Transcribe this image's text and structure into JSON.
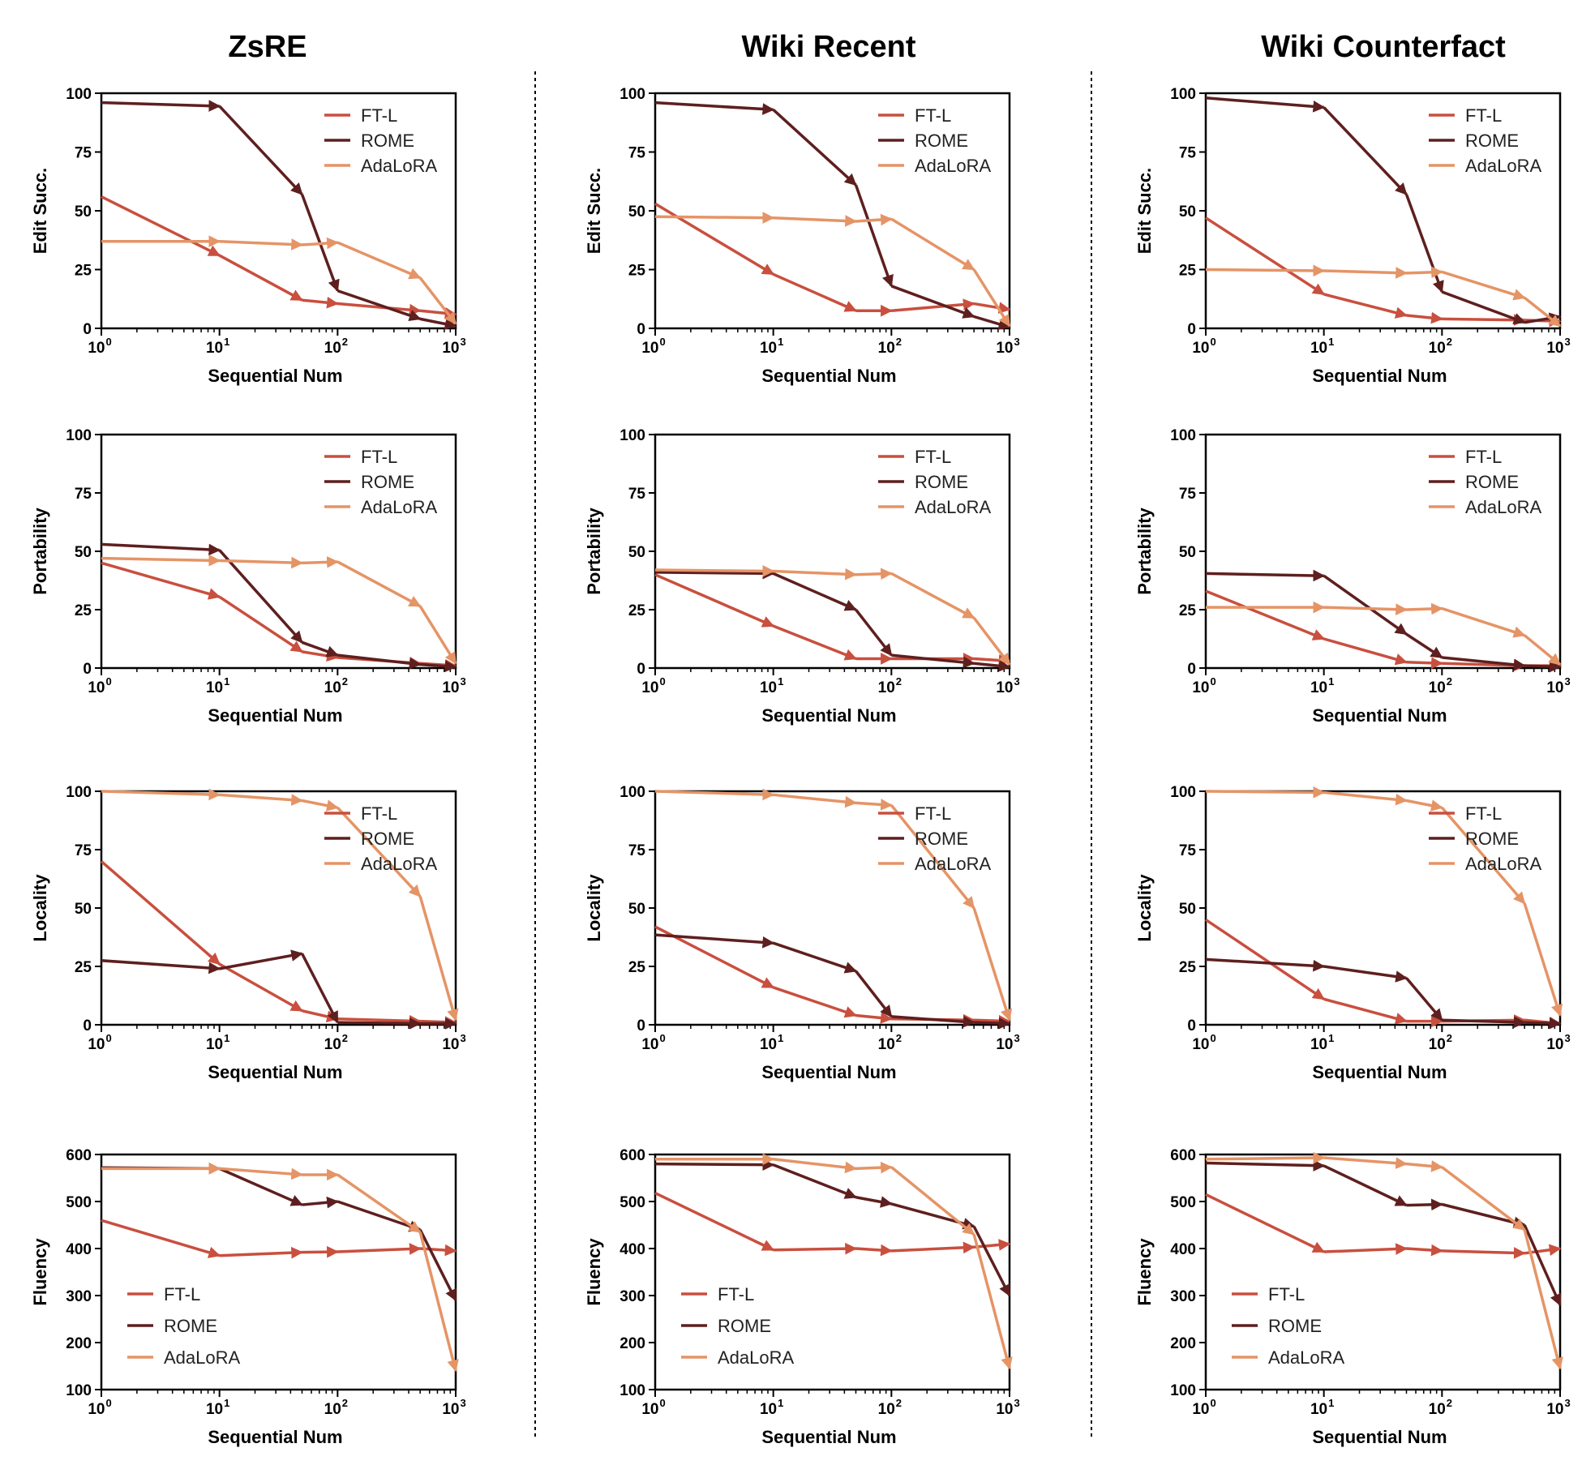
{
  "colors": {
    "FT-L": "#c94f3e",
    "ROME": "#5e1f1f",
    "AdaLoRA": "#e59466"
  },
  "columns": [
    "ZsRE",
    "Wiki Recent",
    "Wiki Counterfact"
  ],
  "chart_data": [
    {
      "type": "line",
      "dataset": "ZsRE",
      "xlabel": "Sequential Num",
      "ylabel": "Edit Succ.",
      "xscale": "log",
      "xlim": [
        1,
        1000
      ],
      "ylim": [
        0,
        100
      ],
      "yticks": [
        0,
        25,
        50,
        75,
        100
      ],
      "legend": "top-right",
      "x": [
        1,
        10,
        50,
        100,
        500,
        1000
      ],
      "series": [
        {
          "name": "FT-L",
          "values": [
            56,
            31,
            12,
            10.5,
            7.5,
            6
          ]
        },
        {
          "name": "ROME",
          "values": [
            96,
            94.5,
            57,
            16,
            4,
            1
          ]
        },
        {
          "name": "AdaLoRA",
          "values": [
            37,
            37,
            35.5,
            36.5,
            21.5,
            2
          ]
        }
      ]
    },
    {
      "type": "line",
      "dataset": "Wiki Recent",
      "xlabel": "Sequential Num",
      "ylabel": "Edit Succ.",
      "xscale": "log",
      "xlim": [
        1,
        1000
      ],
      "ylim": [
        0,
        100
      ],
      "yticks": [
        0,
        25,
        50,
        75,
        100
      ],
      "legend": "top-right",
      "x": [
        1,
        10,
        50,
        100,
        500,
        1000
      ],
      "series": [
        {
          "name": "FT-L",
          "values": [
            53,
            23,
            7.5,
            7.5,
            10.5,
            8
          ]
        },
        {
          "name": "ROME",
          "values": [
            96,
            93,
            61,
            18,
            5,
            0.5
          ]
        },
        {
          "name": "AdaLoRA",
          "values": [
            47.5,
            47,
            45.5,
            46.5,
            25,
            1
          ]
        }
      ]
    },
    {
      "type": "line",
      "dataset": "Wiki Counterfact",
      "xlabel": "Sequential Num",
      "ylabel": "Edit Succ.",
      "xscale": "log",
      "xlim": [
        1,
        1000
      ],
      "ylim": [
        0,
        100
      ],
      "yticks": [
        0,
        25,
        50,
        75,
        100
      ],
      "legend": "top-right",
      "x": [
        1,
        10,
        50,
        100,
        500,
        1000
      ],
      "series": [
        {
          "name": "FT-L",
          "values": [
            47,
            14.5,
            5.5,
            4,
            3.5,
            3
          ]
        },
        {
          "name": "ROME",
          "values": [
            98,
            94,
            57,
            15.5,
            2.5,
            5
          ]
        },
        {
          "name": "AdaLoRA",
          "values": [
            25,
            24.5,
            23.5,
            24,
            13,
            1
          ]
        }
      ]
    },
    {
      "type": "line",
      "dataset": "ZsRE",
      "xlabel": "Sequential Num",
      "ylabel": "Portability",
      "xscale": "log",
      "xlim": [
        1,
        1000
      ],
      "ylim": [
        0,
        100
      ],
      "yticks": [
        0,
        25,
        50,
        75,
        100
      ],
      "legend": "top-right",
      "x": [
        1,
        10,
        50,
        100,
        500,
        1000
      ],
      "series": [
        {
          "name": "FT-L",
          "values": [
            45,
            30.5,
            7,
            4.5,
            2,
            1
          ]
        },
        {
          "name": "ROME",
          "values": [
            53,
            50.5,
            11,
            5.5,
            1.5,
            0.5
          ]
        },
        {
          "name": "AdaLoRA",
          "values": [
            47,
            46,
            45,
            45.5,
            26.5,
            2
          ]
        }
      ]
    },
    {
      "type": "line",
      "dataset": "Wiki Recent",
      "xlabel": "Sequential Num",
      "ylabel": "Portability",
      "xscale": "log",
      "xlim": [
        1,
        1000
      ],
      "ylim": [
        0,
        100
      ],
      "yticks": [
        0,
        25,
        50,
        75,
        100
      ],
      "legend": "top-right",
      "x": [
        1,
        10,
        50,
        100,
        500,
        1000
      ],
      "series": [
        {
          "name": "FT-L",
          "values": [
            40,
            18,
            4,
            4,
            4,
            3
          ]
        },
        {
          "name": "ROME",
          "values": [
            41,
            40.5,
            25,
            5.5,
            2,
            0.5
          ]
        },
        {
          "name": "AdaLoRA",
          "values": [
            42,
            41.5,
            40,
            40.5,
            21.5,
            1.5
          ]
        }
      ]
    },
    {
      "type": "line",
      "dataset": "Wiki Counterfact",
      "xlabel": "Sequential Num",
      "ylabel": "Portability",
      "xscale": "log",
      "xlim": [
        1,
        1000
      ],
      "ylim": [
        0,
        100
      ],
      "yticks": [
        0,
        25,
        50,
        75,
        100
      ],
      "legend": "top-right",
      "x": [
        1,
        10,
        50,
        100,
        500,
        1000
      ],
      "series": [
        {
          "name": "FT-L",
          "values": [
            33,
            12.5,
            2.5,
            2,
            1,
            1
          ]
        },
        {
          "name": "ROME",
          "values": [
            40.5,
            39.5,
            14.5,
            4.5,
            1,
            0.5
          ]
        },
        {
          "name": "AdaLoRA",
          "values": [
            26,
            26,
            25,
            25.5,
            14,
            1.5
          ]
        }
      ]
    },
    {
      "type": "line",
      "dataset": "ZsRE",
      "xlabel": "Sequential Num",
      "ylabel": "Locality",
      "xscale": "log",
      "xlim": [
        1,
        1000
      ],
      "ylim": [
        0,
        100
      ],
      "yticks": [
        0,
        25,
        50,
        75,
        100
      ],
      "legend": "top-right",
      "x": [
        1,
        10,
        50,
        100,
        500,
        1000
      ],
      "series": [
        {
          "name": "FT-L",
          "values": [
            70,
            26,
            6,
            2.5,
            1.5,
            1
          ]
        },
        {
          "name": "ROME",
          "values": [
            27.5,
            24,
            30.5,
            1,
            0.5,
            0.5
          ]
        },
        {
          "name": "AdaLoRA",
          "values": [
            100,
            98.5,
            96,
            93,
            55,
            2
          ]
        }
      ]
    },
    {
      "type": "line",
      "dataset": "Wiki Recent",
      "xlabel": "Sequential Num",
      "ylabel": "Locality",
      "xscale": "log",
      "xlim": [
        1,
        1000
      ],
      "ylim": [
        0,
        100
      ],
      "yticks": [
        0,
        25,
        50,
        75,
        100
      ],
      "legend": "top-right",
      "x": [
        1,
        10,
        50,
        100,
        500,
        1000
      ],
      "series": [
        {
          "name": "FT-L",
          "values": [
            42,
            16,
            4,
            2.5,
            2,
            1.5
          ]
        },
        {
          "name": "ROME",
          "values": [
            38.5,
            35,
            23,
            3.5,
            1,
            0.5
          ]
        },
        {
          "name": "AdaLoRA",
          "values": [
            100,
            98.5,
            95,
            94,
            50,
            2
          ]
        }
      ]
    },
    {
      "type": "line",
      "dataset": "Wiki Counterfact",
      "xlabel": "Sequential Num",
      "ylabel": "Locality",
      "xscale": "log",
      "xlim": [
        1,
        1000
      ],
      "ylim": [
        0,
        100
      ],
      "yticks": [
        0,
        25,
        50,
        75,
        100
      ],
      "legend": "top-right",
      "x": [
        1,
        10,
        50,
        100,
        500,
        1000
      ],
      "series": [
        {
          "name": "FT-L",
          "values": [
            45,
            11,
            1.5,
            1.5,
            2,
            0.5
          ]
        },
        {
          "name": "ROME",
          "values": [
            28,
            25,
            20,
            2,
            1,
            0.5
          ]
        },
        {
          "name": "AdaLoRA",
          "values": [
            100,
            99.5,
            96,
            93,
            52,
            4
          ]
        }
      ]
    },
    {
      "type": "line",
      "dataset": "ZsRE",
      "xlabel": "Sequential Num",
      "ylabel": "Fluency",
      "xscale": "log",
      "xlim": [
        1,
        1000
      ],
      "ylim": [
        100,
        600
      ],
      "yticks": [
        100,
        200,
        300,
        400,
        500,
        600
      ],
      "legend": "bottom-left",
      "x": [
        1,
        10,
        50,
        100,
        500,
        1000
      ],
      "series": [
        {
          "name": "FT-L",
          "values": [
            460,
            385,
            392,
            393,
            400,
            395
          ]
        },
        {
          "name": "ROME",
          "values": [
            572,
            570,
            493,
            500,
            440,
            290
          ]
        },
        {
          "name": "AdaLoRA",
          "values": [
            570,
            570,
            557,
            557,
            435,
            140
          ]
        }
      ]
    },
    {
      "type": "line",
      "dataset": "Wiki Recent",
      "xlabel": "Sequential Num",
      "ylabel": "Fluency",
      "xscale": "log",
      "xlim": [
        1,
        1000
      ],
      "ylim": [
        100,
        600
      ],
      "yticks": [
        100,
        200,
        300,
        400,
        500,
        600
      ],
      "legend": "bottom-left",
      "x": [
        1,
        10,
        50,
        100,
        500,
        1000
      ],
      "series": [
        {
          "name": "FT-L",
          "values": [
            518,
            397,
            400,
            395,
            403,
            410
          ]
        },
        {
          "name": "ROME",
          "values": [
            580,
            578,
            509,
            495,
            447,
            300
          ]
        },
        {
          "name": "AdaLoRA",
          "values": [
            590,
            590,
            570,
            573,
            430,
            145
          ]
        }
      ]
    },
    {
      "type": "line",
      "dataset": "Wiki Counterfact",
      "xlabel": "Sequential Num",
      "ylabel": "Fluency",
      "xscale": "log",
      "xlim": [
        1,
        1000
      ],
      "ylim": [
        100,
        600
      ],
      "yticks": [
        100,
        200,
        300,
        400,
        500,
        600
      ],
      "legend": "bottom-left",
      "x": [
        1,
        10,
        50,
        100,
        500,
        1000
      ],
      "series": [
        {
          "name": "FT-L",
          "values": [
            515,
            393,
            400,
            395,
            390,
            400
          ]
        },
        {
          "name": "ROME",
          "values": [
            582,
            576,
            492,
            494,
            450,
            280
          ]
        },
        {
          "name": "AdaLoRA",
          "values": [
            590,
            593,
            580,
            573,
            440,
            145
          ]
        }
      ]
    }
  ]
}
